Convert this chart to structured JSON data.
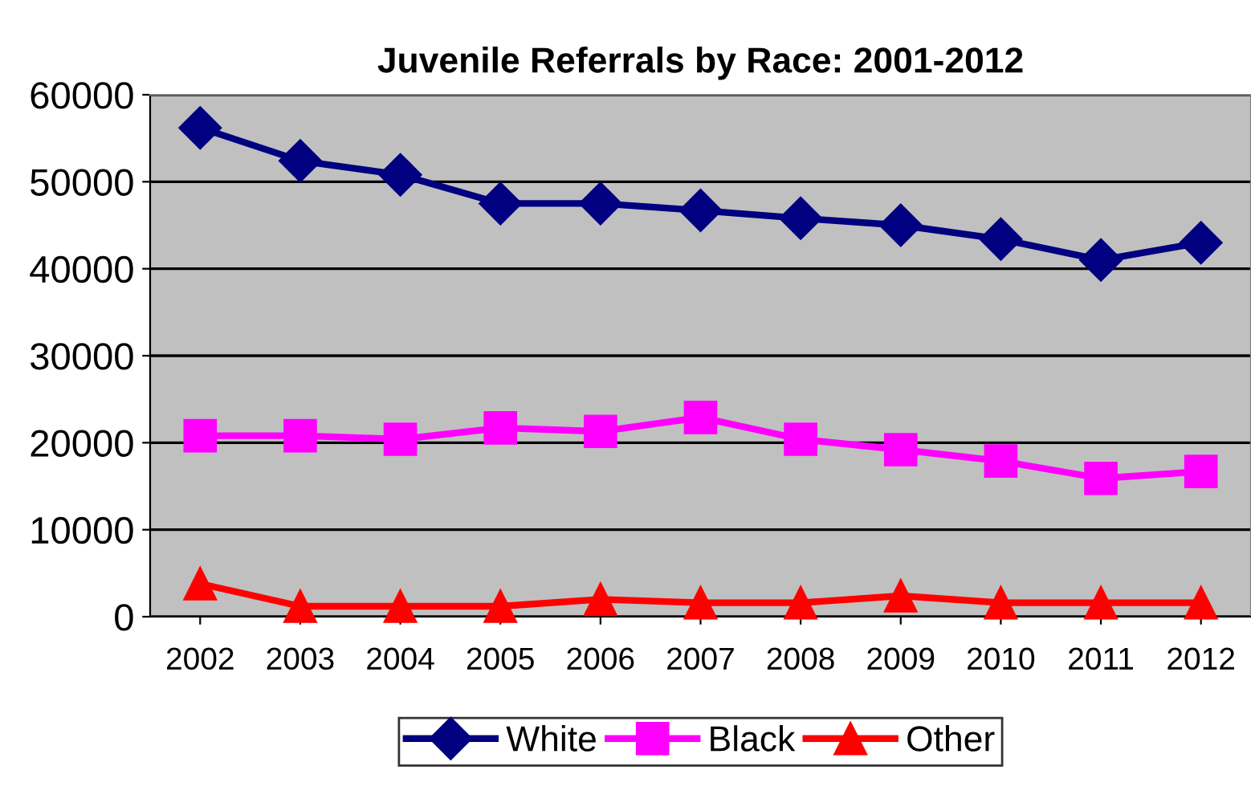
{
  "chart_data": {
    "type": "line",
    "title": "Juvenile Referrals by Race: 2001-2012",
    "categories": [
      "2002",
      "2003",
      "2004",
      "2005",
      "2006",
      "2007",
      "2008",
      "2009",
      "2010",
      "2011",
      "2012"
    ],
    "series": [
      {
        "name": "White",
        "color": "#000080",
        "marker": "diamond",
        "values": [
          56200,
          52400,
          50800,
          47500,
          47500,
          46700,
          45800,
          45000,
          43400,
          41000,
          43000
        ]
      },
      {
        "name": "Black",
        "color": "#ff00ff",
        "marker": "square",
        "values": [
          20800,
          20800,
          20400,
          21700,
          21300,
          22900,
          20400,
          19200,
          17900,
          15900,
          16700
        ]
      },
      {
        "name": "Other",
        "color": "#ff0000",
        "marker": "triangle",
        "values": [
          3800,
          1200,
          1200,
          1200,
          2000,
          1600,
          1600,
          2400,
          1600,
          1600,
          1600
        ]
      }
    ],
    "ylim": [
      0,
      60000
    ],
    "yticks": [
      0,
      10000,
      20000,
      30000,
      40000,
      50000,
      60000
    ],
    "grid": "y",
    "legend": "bottom"
  }
}
